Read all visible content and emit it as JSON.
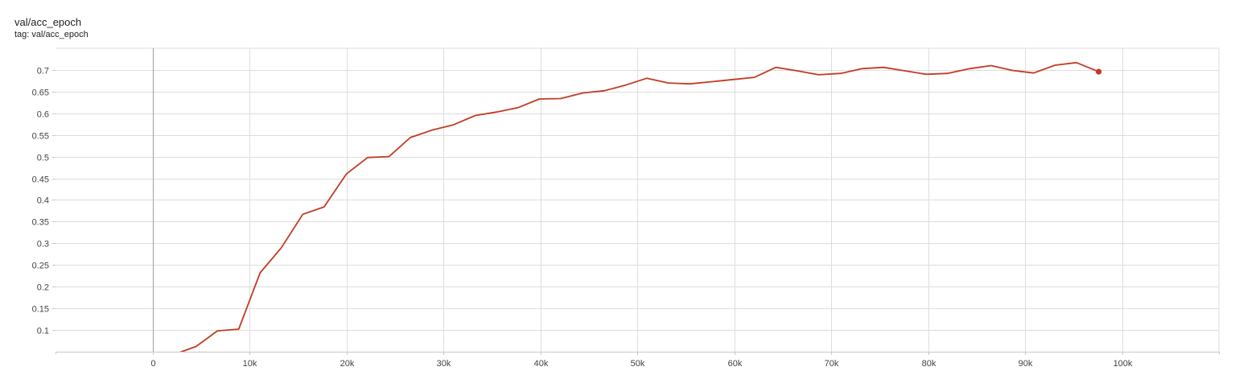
{
  "panel": {
    "title": "val/acc_epoch",
    "tag": "tag: val/acc_epoch"
  },
  "chart_data": {
    "type": "line",
    "xlim": [
      -10000,
      110000
    ],
    "ylim": [
      0.05,
      0.75
    ],
    "xticks": [
      0,
      10000,
      20000,
      30000,
      40000,
      50000,
      60000,
      70000,
      80000,
      90000,
      100000
    ],
    "xtick_labels": [
      "0",
      "10k",
      "20k",
      "30k",
      "40k",
      "50k",
      "60k",
      "70k",
      "80k",
      "90k",
      "100k"
    ],
    "yticks": [
      0.1,
      0.15,
      0.2,
      0.25,
      0.3,
      0.35,
      0.4,
      0.45,
      0.5,
      0.55,
      0.6,
      0.65,
      0.7
    ],
    "ytick_labels": [
      "0.1",
      "0.15",
      "0.2",
      "0.25",
      "0.3",
      "0.35",
      "0.4",
      "0.45",
      "0.5",
      "0.55",
      "0.6",
      "0.65",
      "0.7"
    ],
    "grid": true,
    "series": [
      {
        "color": "#c23b22",
        "x": [
          0,
          2400,
          4500,
          6700,
          8900,
          11100,
          13300,
          15500,
          17700,
          20000,
          22200,
          24400,
          26600,
          28800,
          31000,
          33300,
          35500,
          37700,
          39900,
          42100,
          44400,
          46600,
          48800,
          51000,
          53200,
          55400,
          57700,
          59900,
          62100,
          64300,
          66500,
          68700,
          71000,
          73200,
          75400,
          77600,
          79800,
          82000,
          84300,
          86500,
          88700,
          90900,
          93100,
          95300,
          97600
        ],
        "y": [
          0.03,
          0.045,
          0.062,
          0.098,
          0.102,
          0.232,
          0.29,
          0.367,
          0.384,
          0.46,
          0.498,
          0.5,
          0.544,
          0.561,
          0.573,
          0.595,
          0.603,
          0.613,
          0.633,
          0.634,
          0.647,
          0.652,
          0.665,
          0.681,
          0.67,
          0.668,
          0.673,
          0.678,
          0.683,
          0.706,
          0.698,
          0.689,
          0.692,
          0.703,
          0.706,
          0.698,
          0.69,
          0.692,
          0.703,
          0.71,
          0.699,
          0.693,
          0.711,
          0.717,
          0.696
        ]
      }
    ]
  }
}
